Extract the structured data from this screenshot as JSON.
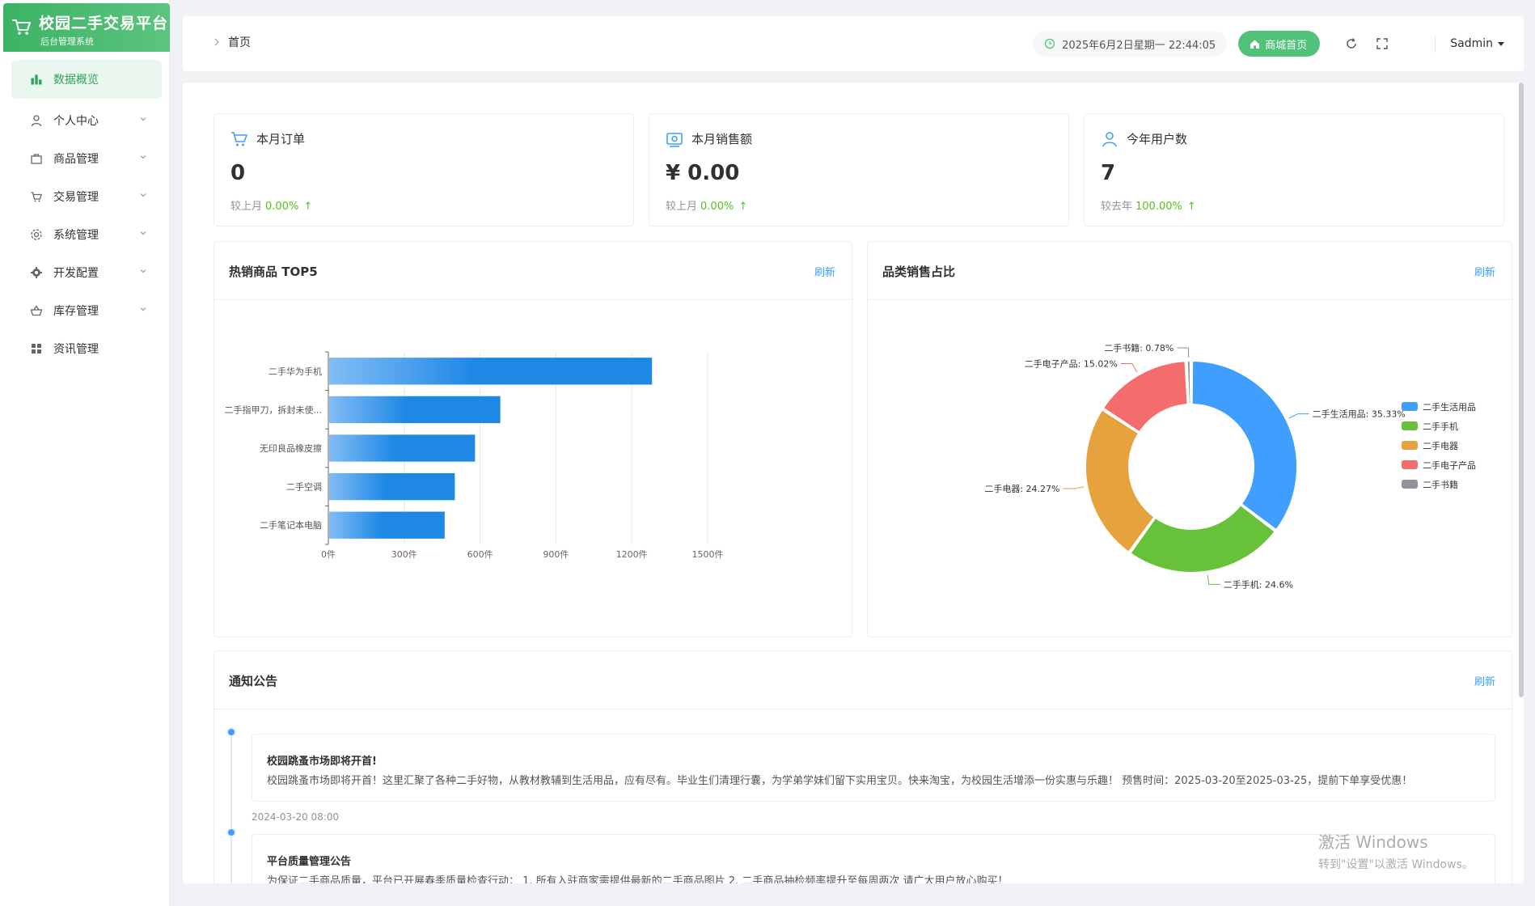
{
  "app": {
    "title": "校园二手交易平台",
    "subtitle": "后台管理系统"
  },
  "sidebar": {
    "items": [
      {
        "label": "数据概览",
        "icon": "bar-chart-icon",
        "active": true
      },
      {
        "label": "个人中心",
        "icon": "user-icon"
      },
      {
        "label": "商品管理",
        "icon": "bag-icon"
      },
      {
        "label": "交易管理",
        "icon": "cart-icon"
      },
      {
        "label": "系统管理",
        "icon": "gear-icon"
      },
      {
        "label": "开发配置",
        "icon": "cog-icon"
      },
      {
        "label": "库存管理",
        "icon": "basket-icon"
      },
      {
        "label": "资讯管理",
        "icon": "grid-icon"
      }
    ]
  },
  "header": {
    "breadcrumb": "首页",
    "datetime": "2025年6月2日星期一 22:44:05",
    "home_button": "商城首页",
    "user": "Sadmin"
  },
  "stats": [
    {
      "label": "本月订单",
      "value": "0",
      "compare_label": "较上月",
      "percent": "0.00%",
      "arrow": "↑",
      "icon": "cart-icon"
    },
    {
      "label": "本月销售额",
      "value": "¥ 0.00",
      "compare_label": "较上月",
      "percent": "0.00%",
      "arrow": "↑",
      "icon": "wallet-icon"
    },
    {
      "label": "今年用户数",
      "value": "7",
      "compare_label": "较去年",
      "percent": "100.00%",
      "arrow": "↑",
      "icon": "user-icon"
    }
  ],
  "bar_card": {
    "title": "热销商品 TOP5",
    "refresh": "刷新"
  },
  "pie_card": {
    "title": "品类销售占比",
    "refresh": "刷新"
  },
  "chart_data": [
    {
      "type": "bar",
      "orientation": "horizontal",
      "categories": [
        "二手华为手机",
        "二手指甲刀，拆封未使...",
        "无印良品橡皮擦",
        "二手空调",
        "二手笔记本电脑"
      ],
      "values": [
        1280,
        680,
        580,
        500,
        460
      ],
      "tick_labels": [
        "0件",
        "300件",
        "600件",
        "900件",
        "1200件",
        "1500件"
      ],
      "xlim": [
        0,
        1500
      ],
      "grid": true,
      "color": "#1e88e5"
    },
    {
      "type": "pie",
      "donut": true,
      "labels": [
        "二手生活用品",
        "二手手机",
        "二手电器",
        "二手电子产品",
        "二手书籍"
      ],
      "values": [
        35.33,
        24.6,
        24.27,
        15.02,
        0.78
      ],
      "value_labels": [
        "二手生活用品: 35.33%",
        "二手手机: 24.6%",
        "二手电器: 24.27%",
        "二手电子产品: 15.02%",
        "二手书籍: 0.78%"
      ],
      "colors": [
        "#409eff",
        "#67c23a",
        "#e6a23c",
        "#f56c6c",
        "#909399"
      ],
      "legend": "right"
    }
  ],
  "notices": {
    "title": "通知公告",
    "refresh": "刷新",
    "items": [
      {
        "title": "校园跳蚤市场即将开首!",
        "content": "校园跳蚤市场即将开首！这里汇聚了各种二手好物，从教材教辅到生活用品，应有尽有。毕业生们清理行囊，为学弟学妹们留下实用宝贝。快来淘宝，为校园生活增添一份实惠与乐趣！ 预售时间：2025-03-20至2025-03-25，提前下单享受优惠！",
        "date": "2024-03-20 08:00"
      },
      {
        "title": "平台质量管理公告",
        "content": "为保证二手商品质量，平台已开展春季质量检查行动： 1. 所有入驻商家需提供最新的二手商品图片 2. 二手商品抽检频率提升至每周两次 请广大用户放心购买！",
        "date": ""
      }
    ]
  },
  "watermark": {
    "line1": "激活 Windows",
    "line2": "转到\"设置\"以激活 Windows。"
  }
}
